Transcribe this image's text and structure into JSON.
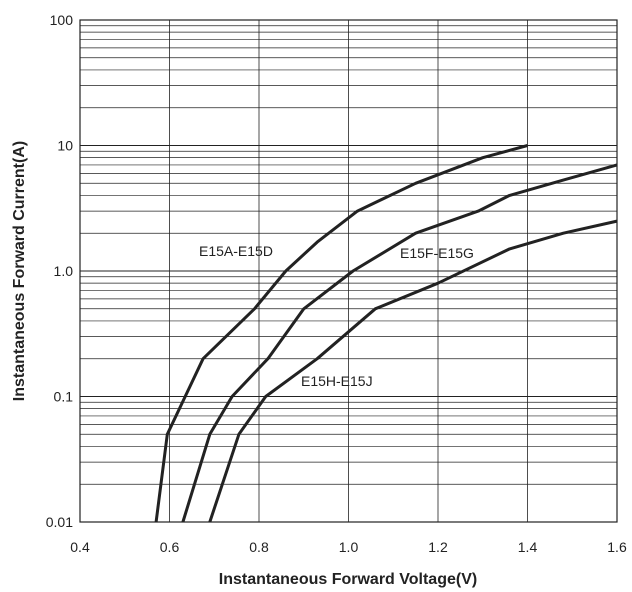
{
  "chart_data": {
    "type": "line",
    "xlabel": "Instantaneous Forward Voltage(V)",
    "ylabel": "Instantaneous Forward Current(A)",
    "xlim": [
      0.4,
      1.6
    ],
    "ylim": [
      0.01,
      100
    ],
    "yscale": "log",
    "grid": true,
    "x_ticks": [
      "0.4",
      "0.6",
      "0.8",
      "1.0",
      "1.2",
      "1.4",
      "1.6"
    ],
    "y_ticks": [
      "0.01",
      "0.1",
      "1.0",
      "10",
      "100"
    ],
    "series": [
      {
        "name": "E15A-E15D",
        "x": [
          0.57,
          0.595,
          0.635,
          0.675,
          0.79,
          0.86,
          0.93,
          1.02,
          1.15,
          1.3,
          1.4
        ],
        "y": [
          0.01,
          0.05,
          0.1,
          0.2,
          0.5,
          1.0,
          1.7,
          3.0,
          5.0,
          8.0,
          10.0
        ]
      },
      {
        "name": "E15F-E15G",
        "x": [
          0.63,
          0.69,
          0.74,
          0.82,
          0.9,
          1.01,
          1.15,
          1.29,
          1.36,
          1.48,
          1.6
        ],
        "y": [
          0.01,
          0.05,
          0.1,
          0.2,
          0.5,
          1.0,
          2.0,
          3.0,
          4.0,
          5.3,
          7.0
        ]
      },
      {
        "name": "E15H-E15J",
        "x": [
          0.69,
          0.755,
          0.815,
          0.93,
          1.06,
          1.2,
          1.36,
          1.48,
          1.6
        ],
        "y": [
          0.01,
          0.05,
          0.1,
          0.2,
          0.5,
          0.8,
          1.5,
          2.0,
          2.5
        ]
      }
    ]
  }
}
